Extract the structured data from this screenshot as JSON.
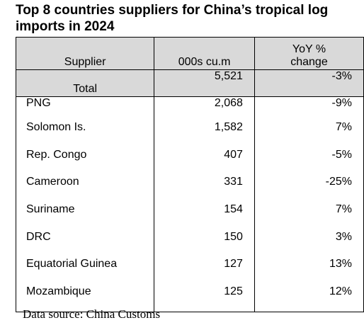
{
  "title": "Top 8 countries suppliers for China’s tropical log imports in 2024",
  "table": {
    "headers": {
      "supplier": "Supplier",
      "volume": "000s cu.m",
      "yoy_line1": "YoY %",
      "yoy_line2": "change"
    },
    "total": {
      "label": "Total",
      "volume": "5,521",
      "yoy": "-3%"
    },
    "rows": [
      {
        "supplier": "PNG",
        "volume": "2,068",
        "yoy": "-9%"
      },
      {
        "supplier": "Solomon Is.",
        "volume": "1,582",
        "yoy": "7%"
      },
      {
        "supplier": "Rep. Congo",
        "volume": "407",
        "yoy": "-5%"
      },
      {
        "supplier": "Cameroon",
        "volume": "331",
        "yoy": "-25%"
      },
      {
        "supplier": "Suriname",
        "volume": "154",
        "yoy": "7%"
      },
      {
        "supplier": "DRC",
        "volume": "150",
        "yoy": "3%"
      },
      {
        "supplier": "Equatorial Guinea",
        "volume": "127",
        "yoy": "13%"
      },
      {
        "supplier": "Mozambique",
        "volume": "125",
        "yoy": "12%"
      }
    ]
  },
  "source": "Data source: China Customs",
  "colors": {
    "header_fill": "#d9d9d9",
    "text": "#000000",
    "border": "#000000"
  }
}
